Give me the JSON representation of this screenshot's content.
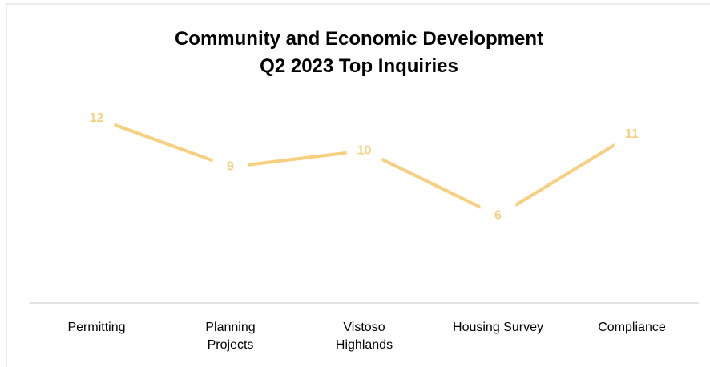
{
  "chart_data": {
    "type": "line",
    "title": "Community and Economic Development",
    "subtitle": "Q2 2023 Top Inquiries",
    "categories": [
      "Permitting",
      "Planning Projects",
      "Vistoso Highlands",
      "Housing Survey",
      "Compliance"
    ],
    "values": [
      12,
      9,
      10,
      6,
      11
    ],
    "color": "#f8cf7e",
    "ylim": [
      0,
      14
    ]
  }
}
